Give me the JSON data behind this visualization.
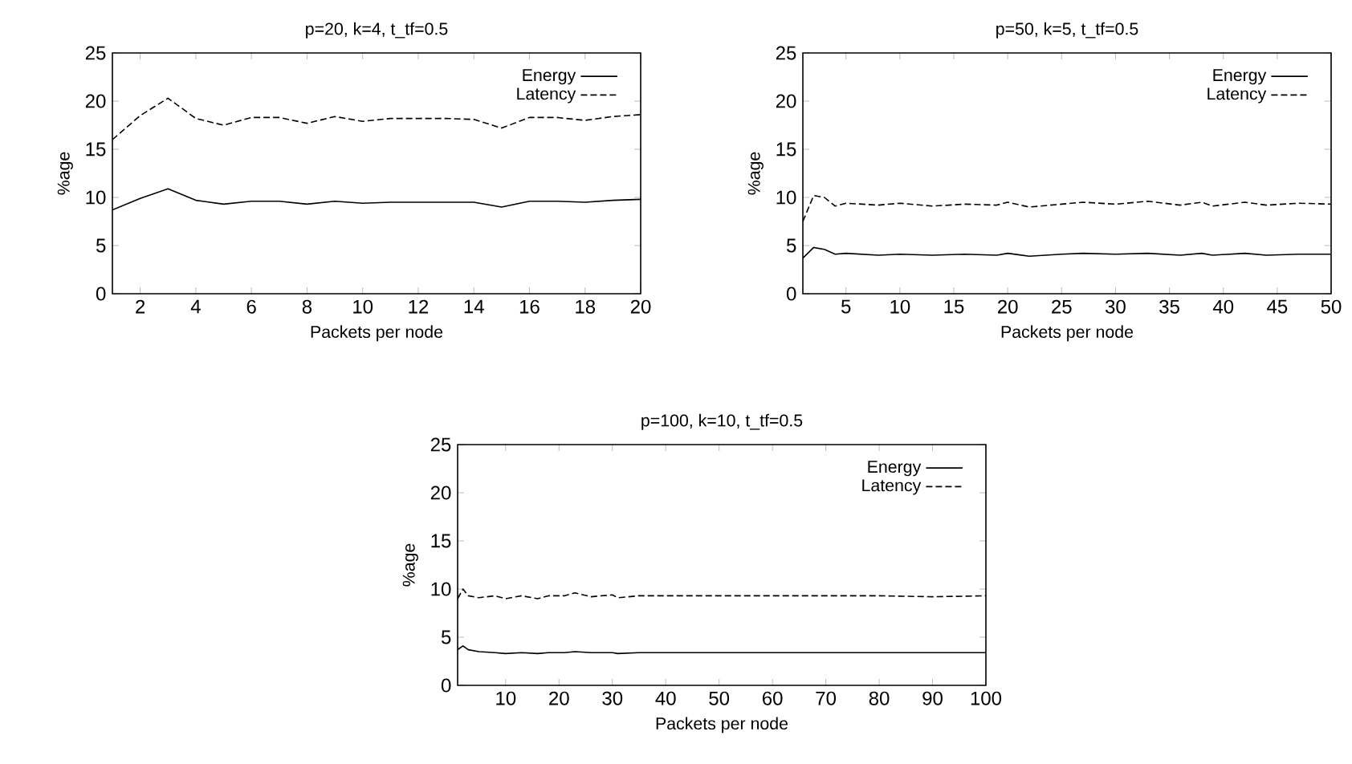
{
  "chart_data": [
    {
      "type": "line",
      "title": "p=20, k=4, t_tf=0.5",
      "xlabel": "Packets per node",
      "ylabel": "%age",
      "legend": "top right",
      "marker": "none",
      "xlim": [
        1,
        20
      ],
      "ylim": [
        0,
        25
      ],
      "xticks": [
        2,
        4,
        6,
        8,
        10,
        12,
        14,
        16,
        18,
        20
      ],
      "yticks": [
        0,
        5,
        10,
        15,
        20,
        25
      ],
      "x": [
        1,
        2,
        3,
        4,
        5,
        6,
        7,
        8,
        9,
        10,
        11,
        12,
        13,
        14,
        15,
        16,
        17,
        18,
        19,
        20
      ],
      "series": [
        {
          "name": "Energy",
          "color": "#000000",
          "line_style": "solid",
          "values": [
            8.7,
            9.9,
            10.9,
            9.7,
            9.3,
            9.6,
            9.6,
            9.3,
            9.6,
            9.4,
            9.5,
            9.5,
            9.5,
            9.5,
            9.0,
            9.6,
            9.6,
            9.5,
            9.7,
            9.8
          ]
        },
        {
          "name": "Latency",
          "color": "#000000",
          "line_style": "dashed",
          "values": [
            16.0,
            18.5,
            20.3,
            18.2,
            17.5,
            18.3,
            18.3,
            17.7,
            18.4,
            17.9,
            18.2,
            18.2,
            18.2,
            18.1,
            17.2,
            18.3,
            18.3,
            18.0,
            18.4,
            18.6
          ]
        }
      ]
    },
    {
      "type": "line",
      "title": "p=50, k=5, t_tf=0.5",
      "xlabel": "Packets per node",
      "ylabel": "%age",
      "legend": "top right",
      "marker": "none",
      "xlim": [
        1,
        50
      ],
      "ylim": [
        0,
        25
      ],
      "xticks": [
        5,
        10,
        15,
        20,
        25,
        30,
        35,
        40,
        45,
        50
      ],
      "yticks": [
        0,
        5,
        10,
        15,
        20,
        25
      ],
      "x": [
        1,
        2,
        3,
        4,
        5,
        8,
        10,
        13,
        16,
        19,
        20,
        22,
        25,
        27,
        30,
        33,
        36,
        38,
        39,
        42,
        44,
        47,
        50
      ],
      "series": [
        {
          "name": "Energy",
          "color": "#000000",
          "line_style": "solid",
          "values": [
            3.7,
            4.8,
            4.6,
            4.1,
            4.2,
            4.0,
            4.1,
            4.0,
            4.1,
            4.0,
            4.2,
            3.9,
            4.1,
            4.2,
            4.1,
            4.2,
            4.0,
            4.2,
            4.0,
            4.2,
            4.0,
            4.1,
            4.1
          ]
        },
        {
          "name": "Latency",
          "color": "#000000",
          "line_style": "dashed",
          "values": [
            7.5,
            10.2,
            10.0,
            9.1,
            9.4,
            9.2,
            9.4,
            9.1,
            9.3,
            9.2,
            9.5,
            9.0,
            9.3,
            9.5,
            9.3,
            9.6,
            9.2,
            9.5,
            9.1,
            9.5,
            9.2,
            9.4,
            9.3
          ]
        }
      ]
    },
    {
      "type": "line",
      "title": "p=100, k=10, t_tf=0.5",
      "xlabel": "Packets per node",
      "ylabel": "%age",
      "legend": "top right",
      "marker": "none",
      "xlim": [
        1,
        100
      ],
      "ylim": [
        0,
        25
      ],
      "xticks": [
        10,
        20,
        30,
        40,
        50,
        60,
        70,
        80,
        90,
        100
      ],
      "yticks": [
        0,
        5,
        10,
        15,
        20,
        25
      ],
      "x": [
        1,
        2,
        3,
        5,
        8,
        10,
        13,
        16,
        18,
        21,
        23,
        26,
        30,
        31,
        35,
        40,
        50,
        60,
        70,
        80,
        90,
        100
      ],
      "series": [
        {
          "name": "Energy",
          "color": "#000000",
          "line_style": "solid",
          "values": [
            3.7,
            4.1,
            3.7,
            3.5,
            3.4,
            3.3,
            3.4,
            3.3,
            3.4,
            3.4,
            3.5,
            3.4,
            3.4,
            3.3,
            3.4,
            3.4,
            3.4,
            3.4,
            3.4,
            3.4,
            3.4,
            3.4
          ]
        },
        {
          "name": "Latency",
          "color": "#000000",
          "line_style": "dashed",
          "values": [
            9.0,
            10.0,
            9.3,
            9.1,
            9.3,
            9.0,
            9.3,
            9.0,
            9.3,
            9.3,
            9.6,
            9.2,
            9.4,
            9.1,
            9.3,
            9.3,
            9.3,
            9.3,
            9.3,
            9.3,
            9.2,
            9.3
          ]
        }
      ]
    }
  ]
}
